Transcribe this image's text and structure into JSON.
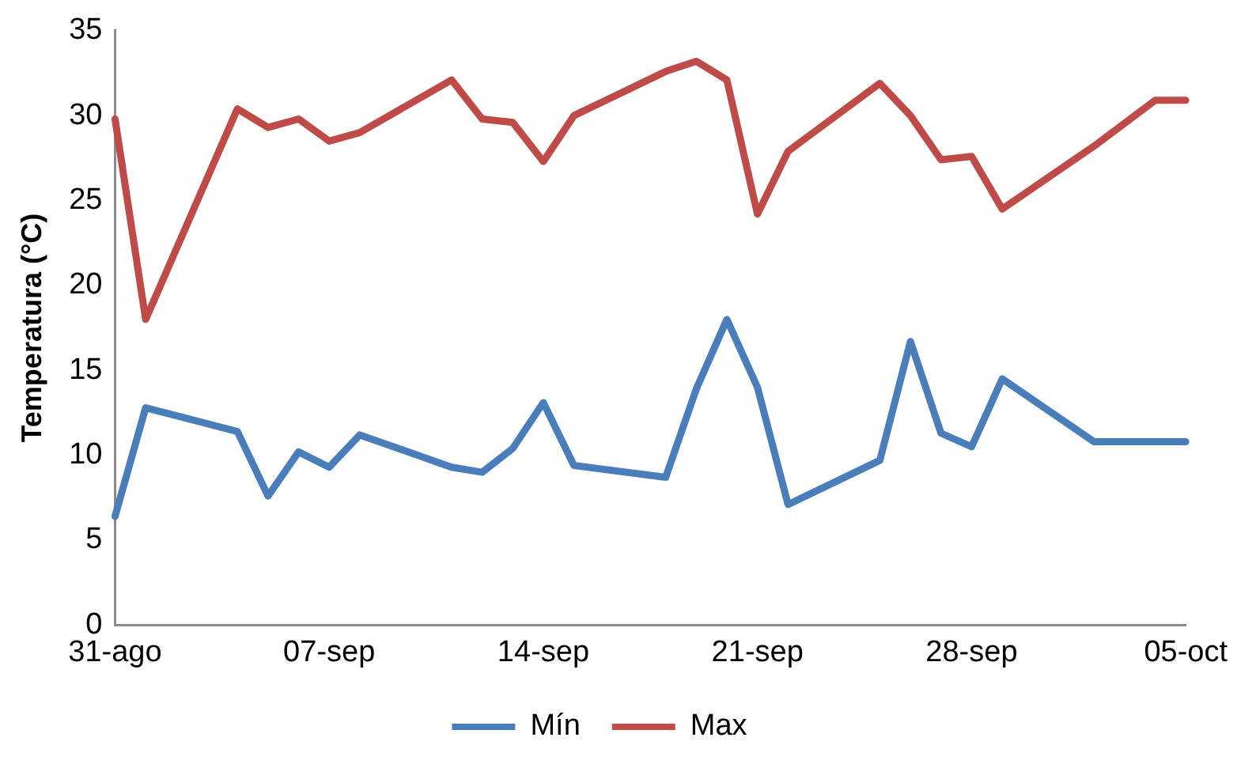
{
  "chart_data": {
    "type": "line",
    "ylabel": "Temperatura (°C)",
    "x": [
      "--08-31",
      "--09-01",
      "--09-04",
      "--09-05",
      "--09-06",
      "--09-07",
      "--09-08",
      "--09-11",
      "--09-12",
      "--09-13",
      "--09-14",
      "--09-15",
      "--09-18",
      "--09-19",
      "--09-20",
      "--09-21",
      "--09-22",
      "--09-25",
      "--09-26",
      "--09-27",
      "--09-28",
      "--09-29",
      "--10-02",
      "--10-04",
      "--10-05"
    ],
    "xlim": [
      "--08-31",
      "--10-05"
    ],
    "xticks": [
      {
        "value": "--08-31",
        "label": "31-ago"
      },
      {
        "value": "--09-07",
        "label": "07-sep"
      },
      {
        "value": "--09-14",
        "label": "14-sep"
      },
      {
        "value": "--09-21",
        "label": "21-sep"
      },
      {
        "value": "--09-28",
        "label": "28-sep"
      },
      {
        "value": "--10-05",
        "label": "05-oct"
      }
    ],
    "ylim": [
      0,
      35
    ],
    "yticks": [
      0,
      5,
      10,
      15,
      20,
      25,
      30,
      35
    ],
    "series": [
      {
        "name": "Mín",
        "color": "#4a7ebb",
        "values": [
          6.4,
          12.8,
          11.4,
          7.6,
          10.2,
          9.3,
          11.2,
          9.3,
          9.0,
          10.4,
          13.1,
          9.4,
          8.7,
          13.9,
          18.0,
          14.0,
          7.1,
          9.7,
          16.7,
          11.3,
          10.5,
          14.5,
          10.8,
          10.8,
          10.8
        ]
      },
      {
        "name": "Max",
        "color": "#be4b48",
        "values": [
          29.8,
          18.0,
          30.4,
          29.3,
          29.8,
          28.5,
          29.0,
          32.1,
          29.8,
          29.6,
          27.3,
          30.0,
          32.6,
          33.2,
          32.1,
          24.2,
          27.9,
          31.9,
          30.0,
          27.4,
          27.6,
          24.5,
          28.2,
          30.9,
          30.9
        ]
      }
    ],
    "grid": false,
    "legend": "bottom",
    "marker": "none",
    "line_style": "solid"
  }
}
